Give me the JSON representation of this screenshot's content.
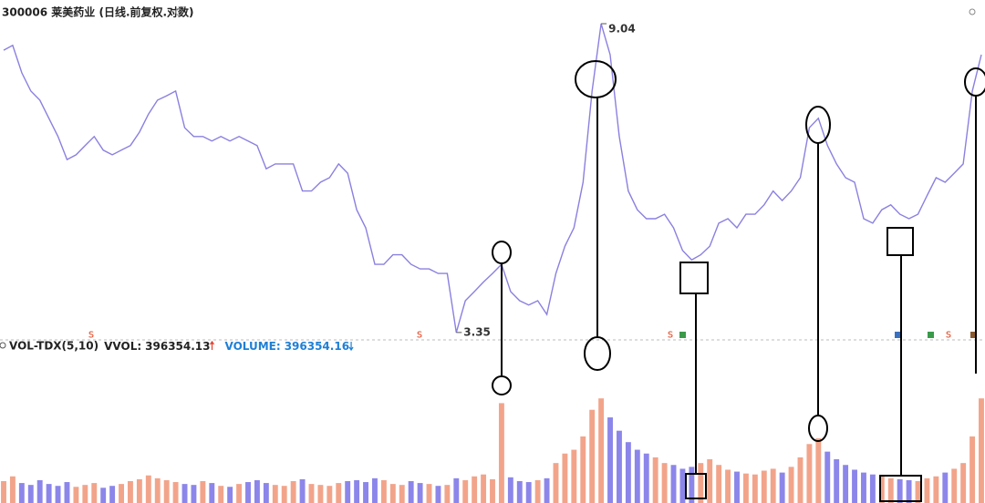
{
  "header": {
    "title": "300006 莱美药业 (日线.前复权.对数)"
  },
  "chart_data": [
    {
      "type": "line",
      "log_scale": true,
      "ylim": [
        3.3,
        9.2
      ],
      "series": [
        {
          "color": "#8a80e0",
          "values": [
            8.3,
            8.43,
            7.72,
            7.28,
            7.07,
            6.67,
            6.29,
            5.84,
            5.93,
            6.11,
            6.29,
            6.02,
            5.93,
            6.02,
            6.11,
            6.38,
            6.76,
            7.07,
            7.17,
            7.28,
            6.47,
            6.29,
            6.29,
            6.2,
            6.29,
            6.2,
            6.29,
            6.2,
            6.11,
            5.67,
            5.76,
            5.76,
            5.76,
            5.28,
            5.28,
            5.43,
            5.51,
            5.76,
            5.59,
            4.97,
            4.69,
            4.17,
            4.17,
            4.3,
            4.3,
            4.17,
            4.11,
            4.11,
            4.05,
            4.05,
            3.35,
            3.71,
            3.82,
            3.94,
            4.05,
            4.17,
            3.82,
            3.71,
            3.66,
            3.71,
            3.55,
            4.05,
            4.42,
            4.69,
            5.43,
            7.28,
            9.04,
            8.18,
            6.29,
            5.28,
            4.97,
            4.83,
            4.83,
            4.9,
            4.69,
            4.36,
            4.23,
            4.3,
            4.42,
            4.76,
            4.83,
            4.69,
            4.9,
            4.9,
            5.05,
            5.28,
            5.12,
            5.28,
            5.51,
            6.47,
            6.67,
            6.11,
            5.76,
            5.51,
            5.43,
            4.83,
            4.76,
            4.97,
            5.05,
            4.9,
            4.83,
            4.9,
            5.2,
            5.51,
            5.43,
            5.59,
            5.76,
            7.28,
            8.18
          ]
        }
      ],
      "event_markers": [
        "s",
        "s",
        "s",
        "s"
      ]
    },
    {
      "type": "bar",
      "title": "VOL-TDX(5,10)",
      "stats": [
        {
          "label": "VVOL:",
          "value": 396354.13,
          "color": "#222222"
        },
        {
          "label": "VOLUME:",
          "value": 396354.16,
          "color": "#1e7fd6"
        }
      ],
      "ylim": [
        0,
        1600000
      ],
      "up_color": "#f2a48a",
      "down_color": "#8c86ea",
      "values": [
        230000,
        280000,
        210000,
        190000,
        240000,
        200000,
        180000,
        220000,
        170000,
        190000,
        210000,
        160000,
        180000,
        200000,
        230000,
        250000,
        290000,
        260000,
        240000,
        220000,
        200000,
        190000,
        230000,
        210000,
        180000,
        170000,
        200000,
        220000,
        240000,
        210000,
        190000,
        180000,
        230000,
        250000,
        200000,
        190000,
        180000,
        210000,
        230000,
        240000,
        220000,
        260000,
        240000,
        200000,
        190000,
        230000,
        210000,
        200000,
        180000,
        190000,
        260000,
        240000,
        280000,
        300000,
        250000,
        1050000,
        270000,
        230000,
        220000,
        240000,
        260000,
        420000,
        520000,
        560000,
        700000,
        980000,
        1100000,
        900000,
        760000,
        640000,
        560000,
        520000,
        480000,
        420000,
        400000,
        360000,
        380000,
        420000,
        460000,
        400000,
        350000,
        330000,
        310000,
        300000,
        340000,
        360000,
        320000,
        380000,
        480000,
        620000,
        680000,
        540000,
        460000,
        400000,
        350000,
        320000,
        300000,
        280000,
        260000,
        250000,
        240000,
        230000,
        260000,
        280000,
        320000,
        360000,
        420000,
        700000,
        1100000
      ]
    }
  ]
}
